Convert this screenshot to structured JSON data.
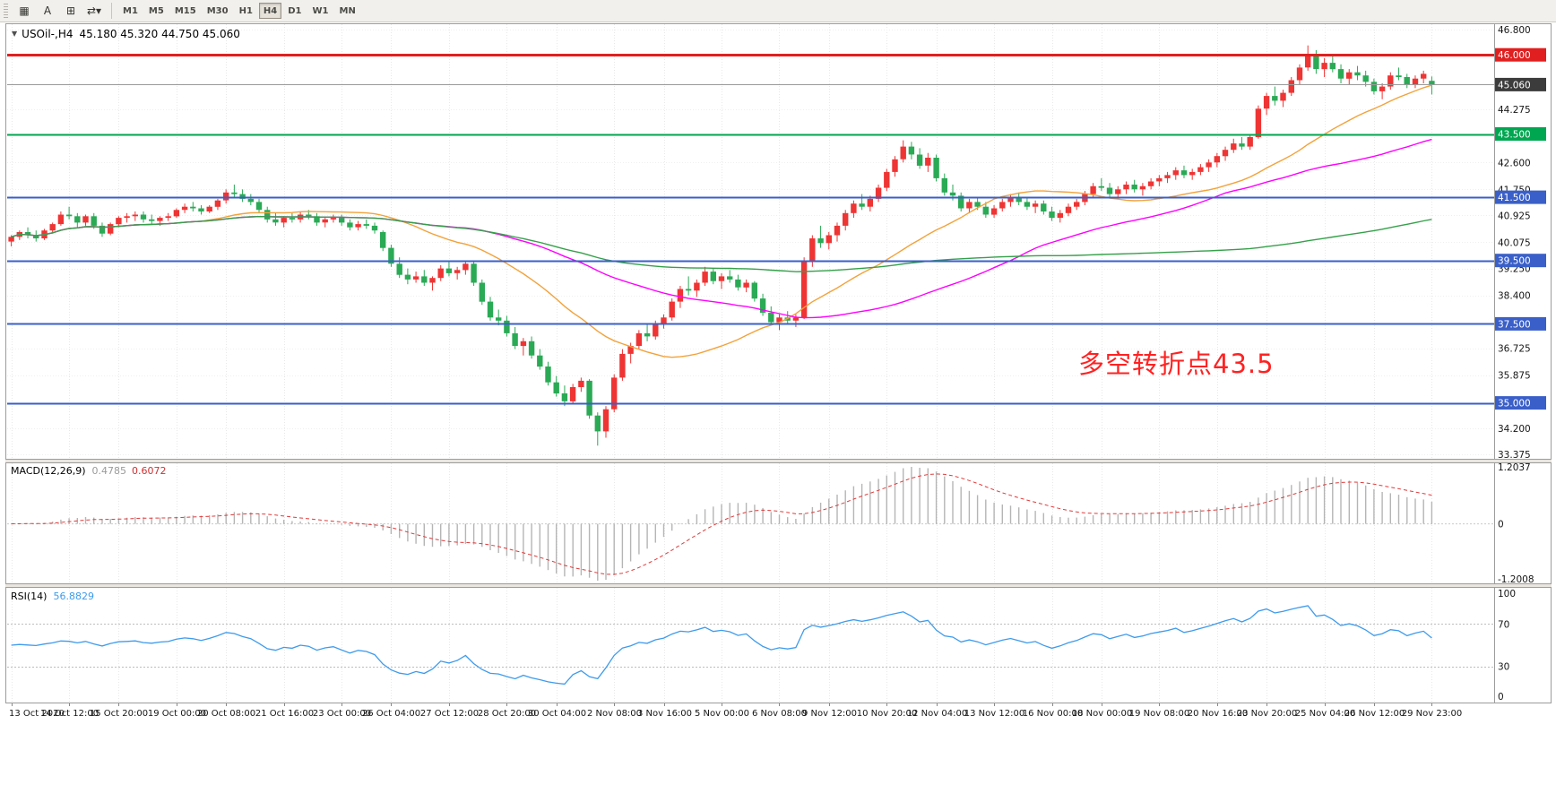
{
  "toolbar": {
    "tools": [
      {
        "name": "table-tool",
        "icon": "▦"
      },
      {
        "name": "text-tool",
        "icon": "A"
      },
      {
        "name": "frame-tool",
        "icon": "⊞"
      },
      {
        "name": "cycle-tool",
        "icon": "⇄",
        "caret": "▾"
      }
    ],
    "timeframes": [
      "M1",
      "M5",
      "M15",
      "M30",
      "H1",
      "H4",
      "D1",
      "W1",
      "MN"
    ],
    "selected_timeframe": "H4"
  },
  "chart_header": {
    "collapse_icon": "▼",
    "symbol": "USOil-,H4",
    "ohlc": "45.180 45.320 44.750 45.060"
  },
  "annotation": {
    "text": "多空转折点43.5",
    "color": "#ff2222"
  },
  "macd_panel": {
    "name": "MACD(12,26,9)",
    "macd_value": "0.4785",
    "signal_value": "0.6072",
    "axis_max": "1.2037",
    "axis_zero": "0",
    "axis_min": "-1.2008"
  },
  "rsi_panel": {
    "name": "RSI(14)",
    "value": "56.8829",
    "axis_labels": [
      "100",
      "70",
      "30",
      "0"
    ],
    "levels": [
      70,
      30
    ]
  },
  "chart_data": {
    "type": "candlestick",
    "symbol": "USOil",
    "timeframe": "H4",
    "price_range": [
      33.375,
      46.8
    ],
    "current_price": 45.06,
    "colors": {
      "bull": "#ef3434",
      "bear": "#2aaa55",
      "background": "#ffffff",
      "macd_histogram": "#b5b5b5",
      "macd_signal": "#e03a3a",
      "rsi_line": "#3E9BEC"
    },
    "price_ticks": [
      {
        "label": "46.800",
        "price": 46.8
      },
      {
        "label": "44.275",
        "price": 44.275
      },
      {
        "label": "42.600",
        "price": 42.6
      },
      {
        "label": "41.750",
        "price": 41.75
      },
      {
        "label": "40.925",
        "price": 40.925
      },
      {
        "label": "40.075",
        "price": 40.075
      },
      {
        "label": "39.250",
        "price": 39.25
      },
      {
        "label": "38.400",
        "price": 38.4
      },
      {
        "label": "36.725",
        "price": 36.725
      },
      {
        "label": "35.875",
        "price": 35.875
      },
      {
        "label": "34.200",
        "price": 34.2
      },
      {
        "label": "33.375",
        "price": 33.375
      }
    ],
    "price_badges": [
      {
        "label": "46.000",
        "price": 46.0,
        "color": "#e02020"
      },
      {
        "label": "45.060",
        "price": 45.06,
        "color": "#3c3c3c"
      },
      {
        "label": "43.500",
        "price": 43.5,
        "color": "#00A650"
      },
      {
        "label": "41.500",
        "price": 41.5,
        "color": "#3A5FC8"
      },
      {
        "label": "39.500",
        "price": 39.5,
        "color": "#3A5FC8"
      },
      {
        "label": "37.500",
        "price": 37.5,
        "color": "#3A5FC8"
      },
      {
        "label": "35.000",
        "price": 35.0,
        "color": "#3A5FC8"
      }
    ],
    "horizontal_lines": [
      {
        "price": 46.0,
        "color": "#e02020",
        "width": 3
      },
      {
        "price": 43.5,
        "color": "#00A650",
        "width": 2
      },
      {
        "price": 41.5,
        "color": "#3A5FC8",
        "width": 2
      },
      {
        "price": 39.5,
        "color": "#3A5FC8",
        "width": 2
      },
      {
        "price": 37.5,
        "color": "#3A5FC8",
        "width": 2
      },
      {
        "price": 35.0,
        "color": "#3A5FC8",
        "width": 2
      }
    ],
    "moving_averages": [
      {
        "period": 24,
        "color": "#f2a23a"
      },
      {
        "period": 52,
        "color": "#ff00ff"
      },
      {
        "period": 120,
        "color": "#35a04a"
      }
    ],
    "indicators": [
      {
        "type": "MACD",
        "fast": 12,
        "slow": 26,
        "signal": 9,
        "last_macd": 0.4785,
        "last_signal": 0.6072,
        "axis_max": 1.2037,
        "axis_min": -1.2008
      },
      {
        "type": "RSI",
        "period": 14,
        "last_value": 56.8829,
        "levels": [
          30,
          70
        ]
      }
    ],
    "x_labels": [
      "13 Oct 2020",
      "14 Oct 12:00",
      "15 Oct 20:00",
      "19 Oct 00:00",
      "20 Oct 08:00",
      "21 Oct 16:00",
      "23 Oct 00:00",
      "26 Oct 04:00",
      "27 Oct 12:00",
      "28 Oct 20:00",
      "30 Oct 04:00",
      "2 Nov 08:00",
      "3 Nov 16:00",
      "5 Nov 00:00",
      "6 Nov 08:00",
      "9 Nov 12:00",
      "10 Nov 20:00",
      "12 Nov 04:00",
      "13 Nov 12:00",
      "16 Nov 00:00",
      "18 Nov 00:00",
      "19 Nov 08:00",
      "20 Nov 16:00",
      "23 Nov 20:00",
      "25 Nov 04:00",
      "26 Nov 12:00",
      "29 Nov 23:00"
    ],
    "candles": [
      [
        40.1,
        40.3,
        39.95,
        40.25
      ],
      [
        40.25,
        40.45,
        40.15,
        40.4
      ],
      [
        40.4,
        40.55,
        40.2,
        40.3
      ],
      [
        40.3,
        40.45,
        40.1,
        40.2
      ],
      [
        40.2,
        40.5,
        40.15,
        40.45
      ],
      [
        40.45,
        40.7,
        40.35,
        40.65
      ],
      [
        40.65,
        41.05,
        40.6,
        40.95
      ],
      [
        40.95,
        41.2,
        40.8,
        40.9
      ],
      [
        40.9,
        41.0,
        40.55,
        40.7
      ],
      [
        40.7,
        40.95,
        40.6,
        40.9
      ],
      [
        40.9,
        41.0,
        40.5,
        40.6
      ],
      [
        40.6,
        40.7,
        40.25,
        40.35
      ],
      [
        40.35,
        40.7,
        40.3,
        40.65
      ],
      [
        40.65,
        40.9,
        40.55,
        40.85
      ],
      [
        40.85,
        41.0,
        40.7,
        40.9
      ],
      [
        40.9,
        41.05,
        40.75,
        40.95
      ],
      [
        40.95,
        41.05,
        40.7,
        40.8
      ],
      [
        40.8,
        40.95,
        40.65,
        40.75
      ],
      [
        40.75,
        40.9,
        40.6,
        40.85
      ],
      [
        40.85,
        41.0,
        40.75,
        40.9
      ],
      [
        40.9,
        41.15,
        40.85,
        41.1
      ],
      [
        41.1,
        41.3,
        41.0,
        41.2
      ],
      [
        41.2,
        41.35,
        41.05,
        41.15
      ],
      [
        41.15,
        41.25,
        40.95,
        41.05
      ],
      [
        41.05,
        41.25,
        41.0,
        41.2
      ],
      [
        41.2,
        41.45,
        41.1,
        41.4
      ],
      [
        41.4,
        41.75,
        41.3,
        41.65
      ],
      [
        41.65,
        41.9,
        41.5,
        41.6
      ],
      [
        41.6,
        41.75,
        41.35,
        41.45
      ],
      [
        41.45,
        41.6,
        41.25,
        41.35
      ],
      [
        41.35,
        41.45,
        41.0,
        41.1
      ],
      [
        41.1,
        41.2,
        40.7,
        40.8
      ],
      [
        40.8,
        41.0,
        40.6,
        40.7
      ],
      [
        40.7,
        40.9,
        40.55,
        40.85
      ],
      [
        40.85,
        41.0,
        40.7,
        40.8
      ],
      [
        40.8,
        41.05,
        40.7,
        40.95
      ],
      [
        40.95,
        41.1,
        40.8,
        40.9
      ],
      [
        40.9,
        41.0,
        40.6,
        40.7
      ],
      [
        40.7,
        40.85,
        40.55,
        40.8
      ],
      [
        40.8,
        40.95,
        40.7,
        40.85
      ],
      [
        40.85,
        40.95,
        40.6,
        40.7
      ],
      [
        40.7,
        40.8,
        40.45,
        40.55
      ],
      [
        40.55,
        40.75,
        40.45,
        40.65
      ],
      [
        40.65,
        40.8,
        40.5,
        40.6
      ],
      [
        40.6,
        40.7,
        40.35,
        40.45
      ],
      [
        40.4,
        40.45,
        39.8,
        39.9
      ],
      [
        39.9,
        40.0,
        39.3,
        39.4
      ],
      [
        39.4,
        39.6,
        38.95,
        39.05
      ],
      [
        39.05,
        39.25,
        38.75,
        38.9
      ],
      [
        38.9,
        39.15,
        38.8,
        39.0
      ],
      [
        39.0,
        39.2,
        38.7,
        38.8
      ],
      [
        38.8,
        39.0,
        38.55,
        38.95
      ],
      [
        38.95,
        39.35,
        38.85,
        39.25
      ],
      [
        39.25,
        39.45,
        39.0,
        39.1
      ],
      [
        39.1,
        39.3,
        38.9,
        39.2
      ],
      [
        39.2,
        39.5,
        39.05,
        39.4
      ],
      [
        39.4,
        39.45,
        38.7,
        38.8
      ],
      [
        38.8,
        38.9,
        38.1,
        38.2
      ],
      [
        38.2,
        38.35,
        37.6,
        37.7
      ],
      [
        37.7,
        37.95,
        37.45,
        37.6
      ],
      [
        37.6,
        37.75,
        37.1,
        37.2
      ],
      [
        37.2,
        37.4,
        36.7,
        36.8
      ],
      [
        36.8,
        37.05,
        36.5,
        36.95
      ],
      [
        36.95,
        37.1,
        36.4,
        36.5
      ],
      [
        36.5,
        36.7,
        36.05,
        36.15
      ],
      [
        36.15,
        36.3,
        35.55,
        35.65
      ],
      [
        35.65,
        35.85,
        35.2,
        35.3
      ],
      [
        35.3,
        35.55,
        34.9,
        35.05
      ],
      [
        35.05,
        35.6,
        34.95,
        35.5
      ],
      [
        35.5,
        35.8,
        35.35,
        35.7
      ],
      [
        35.7,
        35.75,
        34.5,
        34.6
      ],
      [
        34.6,
        34.7,
        33.65,
        34.1
      ],
      [
        34.1,
        34.9,
        33.9,
        34.8
      ],
      [
        34.8,
        35.9,
        34.7,
        35.8
      ],
      [
        35.8,
        36.7,
        35.7,
        36.55
      ],
      [
        36.55,
        36.9,
        36.25,
        36.8
      ],
      [
        36.8,
        37.3,
        36.7,
        37.2
      ],
      [
        37.2,
        37.5,
        36.95,
        37.1
      ],
      [
        37.1,
        37.6,
        37.0,
        37.5
      ],
      [
        37.5,
        37.8,
        37.35,
        37.7
      ],
      [
        37.7,
        38.3,
        37.6,
        38.2
      ],
      [
        38.2,
        38.7,
        38.0,
        38.6
      ],
      [
        38.6,
        39.0,
        38.4,
        38.55
      ],
      [
        38.55,
        38.9,
        38.35,
        38.8
      ],
      [
        38.8,
        39.3,
        38.7,
        39.15
      ],
      [
        39.15,
        39.25,
        38.75,
        38.85
      ],
      [
        38.85,
        39.1,
        38.6,
        39.0
      ],
      [
        39.0,
        39.2,
        38.8,
        38.9
      ],
      [
        38.9,
        39.05,
        38.55,
        38.65
      ],
      [
        38.65,
        38.9,
        38.5,
        38.8
      ],
      [
        38.8,
        38.85,
        38.2,
        38.3
      ],
      [
        38.3,
        38.45,
        37.75,
        37.85
      ],
      [
        37.85,
        38.05,
        37.45,
        37.55
      ],
      [
        37.55,
        37.8,
        37.3,
        37.7
      ],
      [
        37.7,
        37.9,
        37.5,
        37.6
      ],
      [
        37.6,
        37.8,
        37.4,
        37.7
      ],
      [
        37.7,
        39.6,
        37.65,
        39.5
      ],
      [
        39.5,
        40.3,
        39.3,
        40.2
      ],
      [
        40.2,
        40.6,
        39.9,
        40.05
      ],
      [
        40.05,
        40.4,
        39.85,
        40.3
      ],
      [
        40.3,
        40.7,
        40.1,
        40.6
      ],
      [
        40.6,
        41.1,
        40.45,
        41.0
      ],
      [
        41.0,
        41.4,
        40.85,
        41.3
      ],
      [
        41.3,
        41.6,
        41.1,
        41.2
      ],
      [
        41.2,
        41.55,
        41.05,
        41.45
      ],
      [
        41.45,
        41.9,
        41.35,
        41.8
      ],
      [
        41.8,
        42.4,
        41.7,
        42.3
      ],
      [
        42.3,
        42.8,
        42.15,
        42.7
      ],
      [
        42.7,
        43.3,
        42.6,
        43.1
      ],
      [
        43.1,
        43.25,
        42.7,
        42.85
      ],
      [
        42.85,
        43.05,
        42.4,
        42.5
      ],
      [
        42.5,
        42.9,
        42.3,
        42.75
      ],
      [
        42.75,
        42.85,
        42.0,
        42.1
      ],
      [
        42.1,
        42.25,
        41.55,
        41.65
      ],
      [
        41.65,
        41.9,
        41.4,
        41.55
      ],
      [
        41.55,
        41.65,
        41.05,
        41.15
      ],
      [
        41.15,
        41.45,
        41.0,
        41.35
      ],
      [
        41.35,
        41.5,
        41.1,
        41.2
      ],
      [
        41.2,
        41.35,
        40.85,
        40.95
      ],
      [
        40.95,
        41.25,
        40.85,
        41.15
      ],
      [
        41.15,
        41.45,
        41.05,
        41.35
      ],
      [
        41.35,
        41.6,
        41.2,
        41.5
      ],
      [
        41.5,
        41.65,
        41.25,
        41.35
      ],
      [
        41.35,
        41.5,
        41.1,
        41.2
      ],
      [
        41.2,
        41.4,
        41.0,
        41.3
      ],
      [
        41.3,
        41.4,
        40.95,
        41.05
      ],
      [
        41.05,
        41.2,
        40.75,
        40.85
      ],
      [
        40.85,
        41.1,
        40.7,
        41.0
      ],
      [
        41.0,
        41.3,
        40.9,
        41.2
      ],
      [
        41.2,
        41.45,
        41.1,
        41.35
      ],
      [
        41.35,
        41.7,
        41.25,
        41.6
      ],
      [
        41.6,
        41.95,
        41.5,
        41.85
      ],
      [
        41.85,
        42.1,
        41.7,
        41.8
      ],
      [
        41.8,
        41.95,
        41.5,
        41.6
      ],
      [
        41.6,
        41.85,
        41.45,
        41.75
      ],
      [
        41.75,
        42.0,
        41.6,
        41.9
      ],
      [
        41.9,
        42.05,
        41.65,
        41.75
      ],
      [
        41.75,
        41.95,
        41.55,
        41.85
      ],
      [
        41.85,
        42.1,
        41.75,
        42.0
      ],
      [
        42.0,
        42.2,
        41.85,
        42.1
      ],
      [
        42.1,
        42.3,
        41.95,
        42.2
      ],
      [
        42.2,
        42.45,
        42.05,
        42.35
      ],
      [
        42.35,
        42.5,
        42.1,
        42.2
      ],
      [
        42.2,
        42.4,
        42.05,
        42.3
      ],
      [
        42.3,
        42.55,
        42.2,
        42.45
      ],
      [
        42.45,
        42.7,
        42.3,
        42.6
      ],
      [
        42.6,
        42.9,
        42.45,
        42.8
      ],
      [
        42.8,
        43.1,
        42.65,
        43.0
      ],
      [
        43.0,
        43.35,
        42.9,
        43.2
      ],
      [
        43.2,
        43.4,
        43.0,
        43.1
      ],
      [
        43.1,
        43.5,
        43.0,
        43.4
      ],
      [
        43.4,
        44.4,
        43.35,
        44.3
      ],
      [
        44.3,
        44.8,
        44.1,
        44.7
      ],
      [
        44.7,
        45.0,
        44.4,
        44.55
      ],
      [
        44.55,
        44.9,
        44.35,
        44.8
      ],
      [
        44.8,
        45.3,
        44.7,
        45.2
      ],
      [
        45.2,
        45.7,
        45.05,
        45.6
      ],
      [
        45.6,
        46.3,
        45.5,
        46.0
      ],
      [
        46.0,
        46.15,
        45.4,
        45.55
      ],
      [
        45.55,
        45.9,
        45.3,
        45.75
      ],
      [
        45.75,
        45.95,
        45.45,
        45.55
      ],
      [
        45.55,
        45.7,
        45.1,
        45.25
      ],
      [
        45.25,
        45.55,
        45.05,
        45.45
      ],
      [
        45.45,
        45.65,
        45.2,
        45.35
      ],
      [
        45.35,
        45.5,
        45.0,
        45.15
      ],
      [
        45.15,
        45.25,
        44.75,
        44.85
      ],
      [
        44.85,
        45.1,
        44.6,
        45.0
      ],
      [
        45.0,
        45.45,
        44.9,
        45.35
      ],
      [
        45.35,
        45.6,
        45.2,
        45.3
      ],
      [
        45.3,
        45.4,
        44.95,
        45.05
      ],
      [
        45.05,
        45.35,
        44.95,
        45.25
      ],
      [
        45.25,
        45.5,
        45.1,
        45.4
      ],
      [
        45.18,
        45.32,
        44.75,
        45.06
      ]
    ]
  }
}
